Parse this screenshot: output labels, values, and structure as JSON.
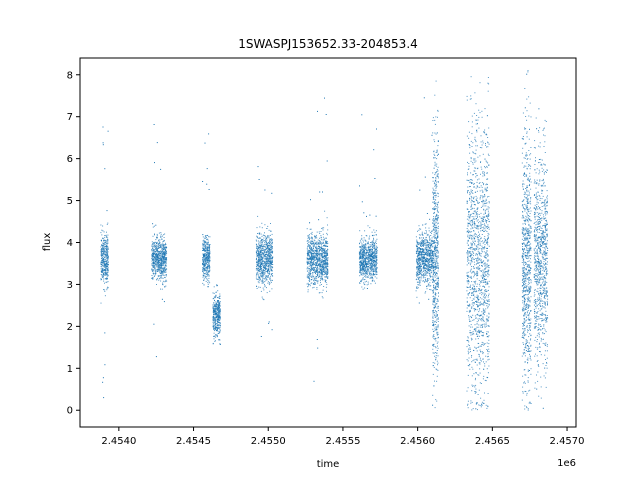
{
  "chart_data": {
    "type": "scatter",
    "title": "1SWASPJ153652.33-204853.4",
    "xlabel": "time",
    "ylabel": "flux",
    "x_offset_label": "1e6",
    "xlim": [
      2453740,
      2457060
    ],
    "ylim": [
      -0.4,
      8.4
    ],
    "x_ticks": [
      2.454,
      2.4545,
      2.455,
      2.4555,
      2.456,
      2.4565,
      2.457
    ],
    "x_tick_labels": [
      "2.4540",
      "2.4545",
      "2.4550",
      "2.4555",
      "2.4560",
      "2.4565",
      "2.4570"
    ],
    "y_ticks": [
      0,
      1,
      2,
      3,
      4,
      5,
      6,
      7,
      8
    ],
    "y_tick_labels": [
      "0",
      "1",
      "2",
      "3",
      "4",
      "5",
      "6",
      "7",
      "8"
    ],
    "grid": false,
    "marker_color": "#1f77b4",
    "series": [
      {
        "clusters": [
          {
            "x_start": 2453880,
            "x_end": 2453930,
            "center": 3.6,
            "spread": 0.3,
            "min": 0.1,
            "max": 7.0
          },
          {
            "x_start": 2454220,
            "x_end": 2454320,
            "center": 3.6,
            "spread": 0.25,
            "min": 0.3,
            "max": 7.1
          },
          {
            "x_start": 2454560,
            "x_end": 2454610,
            "center": 3.6,
            "spread": 0.25,
            "min": 2.6,
            "max": 6.6
          },
          {
            "x_start": 2454630,
            "x_end": 2454680,
            "center": 2.3,
            "spread": 0.25,
            "min": 1.5,
            "max": 3.0
          },
          {
            "x_start": 2454920,
            "x_end": 2455030,
            "center": 3.6,
            "spread": 0.3,
            "min": 0.2,
            "max": 7.2
          },
          {
            "x_start": 2455260,
            "x_end": 2455400,
            "center": 3.6,
            "spread": 0.3,
            "min": 0.6,
            "max": 7.5
          },
          {
            "x_start": 2455610,
            "x_end": 2455730,
            "center": 3.6,
            "spread": 0.25,
            "min": 2.0,
            "max": 8.0
          },
          {
            "x_start": 2455990,
            "x_end": 2456100,
            "center": 3.6,
            "spread": 0.3,
            "min": 2.0,
            "max": 7.5
          },
          {
            "x_start": 2456100,
            "x_end": 2456140,
            "center": 3.6,
            "spread": 1.4,
            "min": 0.0,
            "max": 8.0
          },
          {
            "x_start": 2456330,
            "x_end": 2456480,
            "center": 3.6,
            "spread": 1.6,
            "min": 0.0,
            "max": 8.1
          },
          {
            "x_start": 2456700,
            "x_end": 2456760,
            "center": 3.6,
            "spread": 1.5,
            "min": 0.0,
            "max": 8.1
          },
          {
            "x_start": 2456780,
            "x_end": 2456870,
            "center": 3.6,
            "spread": 1.2,
            "min": 0.0,
            "max": 7.6
          }
        ]
      }
    ]
  }
}
